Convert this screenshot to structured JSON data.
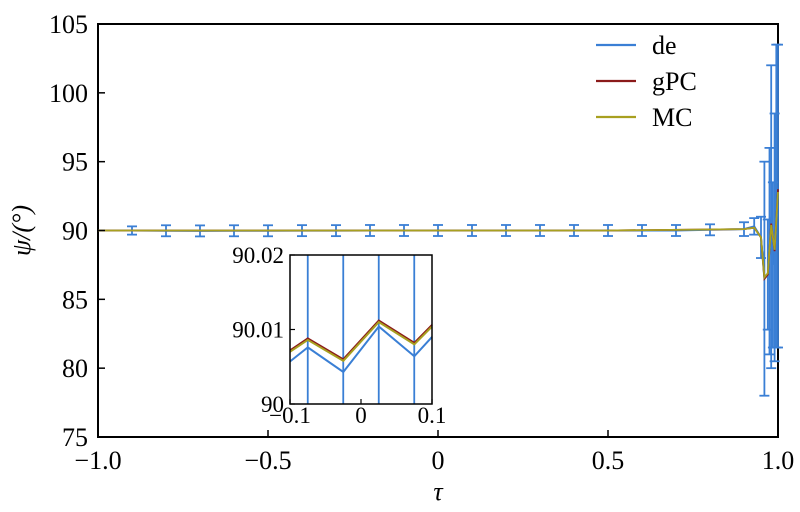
{
  "chart_data": {
    "type": "line",
    "xlabel": "τ",
    "ylabel": "ψ/(°)",
    "xlim": [
      -1.0,
      1.0
    ],
    "ylim": [
      75,
      105
    ],
    "x_ticks": [
      -1.0,
      -0.5,
      0,
      0.5,
      1.0
    ],
    "x_tick_labels": [
      "−1.0",
      "−0.5",
      "0",
      "0.5",
      "1.0"
    ],
    "y_ticks": [
      75,
      80,
      85,
      90,
      95,
      100,
      105
    ],
    "y_tick_labels": [
      "75",
      "80",
      "85",
      "90",
      "95",
      "100",
      "105"
    ],
    "legend_position": "top-right",
    "series": [
      {
        "name": "de",
        "color": "#3a7fd5",
        "x": [
          -1.0,
          -0.9,
          -0.8,
          -0.7,
          -0.6,
          -0.5,
          -0.4,
          -0.3,
          -0.2,
          -0.1,
          0.0,
          0.1,
          0.2,
          0.3,
          0.4,
          0.5,
          0.6,
          0.7,
          0.8,
          0.9,
          0.93,
          0.95,
          0.96,
          0.97,
          0.975,
          0.98,
          0.985,
          0.99,
          0.995,
          1.0
        ],
        "y": [
          90.0,
          90.0,
          89.98,
          89.97,
          89.98,
          89.98,
          89.99,
          89.99,
          90.0,
          90.0,
          90.0,
          90.0,
          90.0,
          90.0,
          90.0,
          90.0,
          90.0,
          90.0,
          90.05,
          90.1,
          90.3,
          89.5,
          86.5,
          86.8,
          88.5,
          91.0,
          87.5,
          89.5,
          92.5,
          92.5
        ],
        "err": [
          0,
          0.3,
          0.4,
          0.4,
          0.4,
          0.4,
          0.4,
          0.4,
          0.4,
          0.4,
          0.4,
          0.4,
          0.4,
          0.4,
          0.4,
          0.4,
          0.4,
          0.4,
          0.4,
          0.5,
          0.6,
          1.5,
          8.5,
          4.0,
          7.5,
          11.0,
          6.0,
          9.0,
          11.0,
          11.0
        ]
      },
      {
        "name": "gPC",
        "color": "#8b1a1a",
        "x": [
          -1.0,
          -0.5,
          0.0,
          0.5,
          0.9,
          0.93,
          0.95,
          0.96,
          0.97,
          0.98,
          0.99,
          1.0
        ],
        "y": [
          90.0,
          90.0,
          90.0,
          90.0,
          90.1,
          90.2,
          89.5,
          86.5,
          86.8,
          90.5,
          88.5,
          93.0
        ]
      },
      {
        "name": "MC",
        "color": "#a8a020",
        "x": [
          -1.0,
          -0.5,
          0.0,
          0.5,
          0.9,
          0.93,
          0.95,
          0.96,
          0.97,
          0.98,
          0.99,
          1.0
        ],
        "y": [
          90.0,
          90.0,
          90.0,
          90.0,
          90.1,
          90.2,
          89.5,
          86.6,
          86.9,
          90.4,
          88.6,
          92.8
        ]
      }
    ],
    "inset": {
      "xlim": [
        -0.1,
        0.1
      ],
      "ylim": [
        90.0,
        90.02
      ],
      "x_tick_labels": [
        "−0.1",
        "0",
        "0.1"
      ],
      "y_tick_labels": [
        "90",
        "90.01",
        "90.02"
      ],
      "x_ticks": [
        -0.1,
        0,
        0.1
      ],
      "y_ticks": [
        90.0,
        90.01,
        90.02
      ],
      "error_bar_x": [
        -0.075,
        -0.025,
        0.025,
        0.075
      ],
      "series": [
        {
          "name": "de",
          "x": [
            -0.1,
            -0.075,
            -0.025,
            0.025,
            0.075,
            0.1
          ],
          "y": [
            90.0057,
            90.0076,
            90.0043,
            90.0104,
            90.0064,
            90.009
          ]
        },
        {
          "name": "gPC",
          "x": [
            -0.1,
            -0.075,
            -0.025,
            0.025,
            0.075,
            0.1
          ],
          "y": [
            90.0072,
            90.0088,
            90.006,
            90.0112,
            90.0082,
            90.0106
          ]
        },
        {
          "name": "MC",
          "x": [
            -0.1,
            -0.075,
            -0.025,
            0.025,
            0.075,
            0.1
          ],
          "y": [
            90.007,
            90.0086,
            90.0058,
            90.011,
            90.008,
            90.0104
          ]
        }
      ]
    }
  }
}
